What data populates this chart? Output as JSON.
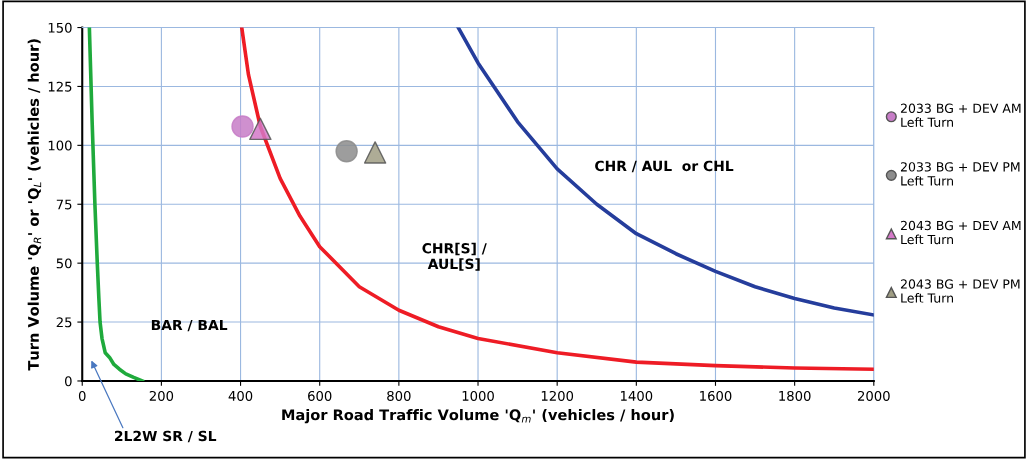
{
  "chart_data": {
    "type": "line",
    "xlabel": "Major Road Traffic Volume 'Q$_{m}$' (vehicles / hour)",
    "ylabel": "Turn Volume 'Q$_{R}$' or 'Q$_{L}$' (vehicles / hour)",
    "xlim": [
      0,
      2000
    ],
    "ylim": [
      0,
      150
    ],
    "xticks": [
      0,
      200,
      400,
      600,
      800,
      1000,
      1200,
      1400,
      1600,
      1800,
      2000
    ],
    "yticks": [
      0,
      25,
      50,
      75,
      100,
      125,
      150
    ],
    "grid": true,
    "legend": "right",
    "series": [
      {
        "color": "#1faa3c",
        "marker": "none",
        "x": [
          18,
          25,
          32,
          38,
          42,
          45,
          50,
          58,
          69,
          80,
          94,
          110,
          130,
          152
        ],
        "values": [
          150,
          110,
          75,
          50,
          35,
          25,
          18,
          12,
          10,
          7,
          5,
          3,
          1.5,
          0
        ]
      },
      {
        "color": "#ee1c25",
        "marker": "none",
        "x": [
          403,
          420,
          450,
          500,
          550,
          600,
          700,
          800,
          900,
          1000,
          1200,
          1400,
          1600,
          1800,
          2000
        ],
        "values": [
          150,
          130,
          108,
          86,
          70,
          57,
          40,
          30,
          23,
          18,
          12,
          8,
          6.5,
          5.5,
          5
        ]
      },
      {
        "color": "#253d9c",
        "marker": "none",
        "x": [
          950,
          1000,
          1100,
          1200,
          1300,
          1400,
          1500,
          1600,
          1700,
          1800,
          1900,
          2000
        ],
        "values": [
          150,
          135,
          110,
          90,
          75,
          62.5,
          54,
          46.5,
          40,
          35,
          31,
          28
        ]
      },
      {
        "type": "scatter",
        "name": "2033 BG + DEV AM\nLeft Turn",
        "color": "#c77dc7",
        "marker": "circle",
        "x": [
          405
        ],
        "values": [
          108
        ]
      },
      {
        "type": "scatter",
        "name": "2033 BG + DEV PM\nLeft Turn",
        "color": "#8c8c8c",
        "marker": "circle",
        "x": [
          668
        ],
        "values": [
          97.5
        ]
      },
      {
        "type": "scatter",
        "name": "2043 BG + DEV AM\nLeft Turn",
        "color": "#d478c8",
        "marker": "triangle",
        "x": [
          450
        ],
        "values": [
          107
        ]
      },
      {
        "type": "scatter",
        "name": "2043 BG + DEV PM\nLeft Turn",
        "color": "#a09e84",
        "marker": "triangle",
        "x": [
          740
        ],
        "values": [
          97
        ]
      }
    ],
    "annotations": [
      "BAR / BAL",
      "CHR[S] /\nAUL[S]",
      "CHR / AUL  or CHL",
      "2L2W SR / SL"
    ]
  }
}
